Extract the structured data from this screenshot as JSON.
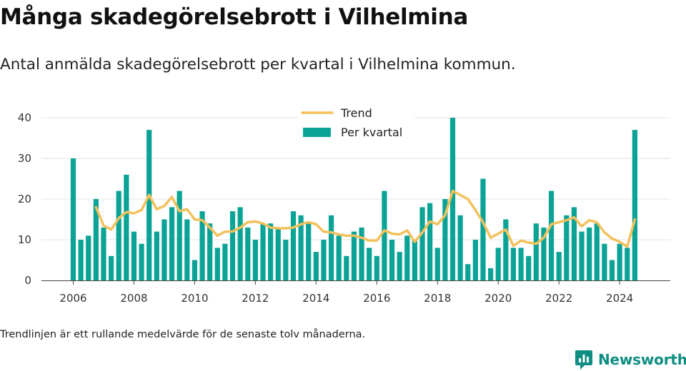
{
  "header": {
    "title": "Många skadegörelsebrott i Vilhelmina",
    "subtitle": "Antal anmälda skadegörelsebrott per kvartal i Vilhelmina kommun."
  },
  "footer": {
    "note": "Trendlinjen är ett rullande medelvärde för de senaste tolv månaderna.",
    "brand": "Newsworthy"
  },
  "icons": {
    "brand_logo": "bar-chart-speech-bubble-icon"
  },
  "colors": {
    "bars": "#0aa396",
    "trend": "#f2c15c",
    "grid": "#e3e3e3",
    "brand": "#0e8e83"
  },
  "chart_data": {
    "type": "bar",
    "x_start": "2006Q1",
    "period": "quarter",
    "series": [
      {
        "name": "Per kvartal",
        "type": "bar",
        "values": [
          30,
          10,
          11,
          20,
          13,
          6,
          22,
          26,
          12,
          9,
          37,
          12,
          15,
          18,
          22,
          15,
          5,
          17,
          14,
          8,
          9,
          17,
          18,
          13,
          10,
          14,
          14,
          13,
          10,
          17,
          16,
          14,
          7,
          10,
          16,
          11,
          6,
          12,
          13,
          8,
          6,
          22,
          10,
          7,
          11,
          10,
          18,
          19,
          8,
          20,
          40,
          16,
          4,
          10,
          25,
          3,
          8,
          15,
          8,
          8,
          6,
          14,
          13,
          22,
          7,
          16,
          18,
          12,
          13,
          14,
          9,
          5,
          9,
          8,
          37
        ]
      },
      {
        "name": "Trend",
        "type": "line",
        "values": [
          null,
          null,
          null,
          18,
          13.5,
          12.5,
          15.3,
          16.8,
          16.5,
          17.3,
          21,
          17.5,
          18.3,
          20.5,
          17,
          17.5,
          15,
          14.8,
          13,
          11,
          12,
          12,
          13,
          14.3,
          14.5,
          14,
          13,
          12.8,
          12.8,
          13,
          13.8,
          14.3,
          13.8,
          12,
          11.8,
          11.3,
          11,
          11,
          10.5,
          9.8,
          9.8,
          12.3,
          11.5,
          11.3,
          12.3,
          9.5,
          11.8,
          14.5,
          13.8,
          16,
          22,
          21,
          20,
          17.3,
          14.3,
          10.5,
          11.5,
          12.5,
          8.5,
          9.8,
          9.3,
          9,
          10.5,
          13.8,
          14.3,
          14.8,
          15.5,
          13.3,
          14.8,
          14.3,
          11.8,
          10.3,
          9.5,
          8.3,
          15
        ]
      }
    ],
    "x_ticks": [
      "2006",
      "2008",
      "2010",
      "2012",
      "2014",
      "2016",
      "2018",
      "2020",
      "2022",
      "2024"
    ],
    "y_ticks": [
      0,
      10,
      20,
      30,
      40
    ],
    "ylim": [
      0,
      40
    ],
    "grid": "horizontal",
    "legend_position": "top-center"
  }
}
